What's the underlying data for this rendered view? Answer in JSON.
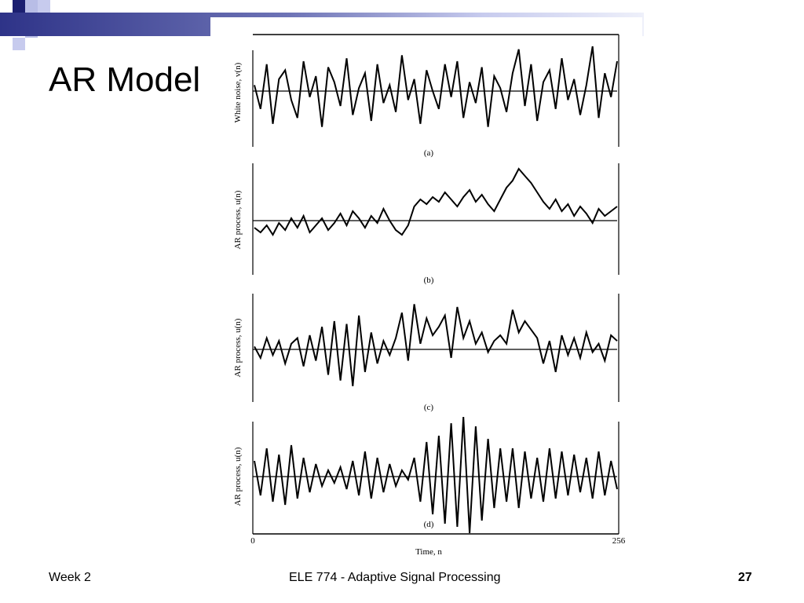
{
  "slide": {
    "title": "AR Model",
    "footer_left": "Week 2",
    "footer_center": "ELE 774 - Adaptive Signal Processing",
    "page_number": "27"
  },
  "colors": {
    "navy": "#1b1f70",
    "lavender": "#b8bde6",
    "accent_gradient_start": "#2e3388"
  },
  "figure": {
    "panels": [
      {
        "ylabel": "White noise, v(n)",
        "caption": "(a)"
      },
      {
        "ylabel": "AR process, u(n)",
        "caption": "(b)"
      },
      {
        "ylabel": "AR process, u(n)",
        "caption": "(c)"
      },
      {
        "ylabel": "AR process, u(n)",
        "caption": "(d)"
      }
    ],
    "x_tick_start": "0",
    "x_tick_end": "256",
    "xlabel": "Time, n"
  },
  "chart_data": [
    {
      "type": "line",
      "ylabel": "White noise, v(n)",
      "caption": "(a)",
      "xlim": [
        0,
        256
      ],
      "series": [
        {
          "values": [
            0.2,
            -0.6,
            0.9,
            -1.1,
            0.4,
            0.7,
            -0.3,
            -0.9,
            1.0,
            -0.2,
            0.5,
            -1.2,
            0.8,
            0.3,
            -0.5,
            1.1,
            -0.8,
            0.1,
            0.6,
            -1.0,
            0.9,
            -0.4,
            0.2,
            -0.7,
            1.2,
            -0.3,
            0.4,
            -1.1,
            0.7,
            0.0,
            -0.6,
            0.9,
            -0.2,
            1.0,
            -0.9,
            0.3,
            -0.4,
            0.8,
            -1.2,
            0.5,
            0.1,
            -0.7,
            0.6,
            1.4,
            -0.5,
            0.9,
            -1.0,
            0.3,
            0.7,
            -0.6,
            1.1,
            -0.3,
            0.4,
            -0.8,
            0.2,
            1.5,
            -0.9,
            0.6,
            -0.2,
            1.0
          ]
        }
      ]
    },
    {
      "type": "line",
      "ylabel": "AR process, u(n)",
      "caption": "(b)",
      "xlim": [
        0,
        256
      ],
      "series": [
        {
          "values": [
            -0.3,
            -0.5,
            -0.2,
            -0.6,
            -0.1,
            -0.4,
            0.1,
            -0.3,
            0.2,
            -0.5,
            -0.2,
            0.1,
            -0.4,
            -0.1,
            0.3,
            -0.2,
            0.4,
            0.1,
            -0.3,
            0.2,
            -0.1,
            0.5,
            0.0,
            -0.4,
            -0.6,
            -0.2,
            0.6,
            0.9,
            0.7,
            1.0,
            0.8,
            1.2,
            0.9,
            0.6,
            1.0,
            1.3,
            0.8,
            1.1,
            0.7,
            0.4,
            0.9,
            1.4,
            1.7,
            2.2,
            1.9,
            1.6,
            1.2,
            0.8,
            0.5,
            0.9,
            0.4,
            0.7,
            0.2,
            0.6,
            0.3,
            -0.1,
            0.5,
            0.2,
            0.4,
            0.6
          ]
        }
      ]
    },
    {
      "type": "line",
      "ylabel": "AR process, u(n)",
      "caption": "(c)",
      "xlim": [
        0,
        256
      ],
      "series": [
        {
          "values": [
            0.1,
            -0.3,
            0.4,
            -0.2,
            0.3,
            -0.5,
            0.2,
            0.4,
            -0.6,
            0.5,
            -0.4,
            0.8,
            -0.9,
            1.0,
            -1.1,
            0.9,
            -1.3,
            1.2,
            -0.8,
            0.6,
            -0.5,
            0.3,
            -0.2,
            0.4,
            1.3,
            -0.4,
            1.6,
            0.2,
            1.1,
            0.5,
            0.8,
            1.2,
            -0.3,
            1.5,
            0.4,
            1.0,
            0.2,
            0.6,
            -0.1,
            0.3,
            0.5,
            0.2,
            1.4,
            0.6,
            1.0,
            0.7,
            0.4,
            -0.5,
            0.3,
            -0.8,
            0.5,
            -0.2,
            0.4,
            -0.3,
            0.6,
            -0.1,
            0.2,
            -0.4,
            0.5,
            0.3
          ]
        }
      ]
    },
    {
      "type": "line",
      "ylabel": "AR process, u(n)",
      "caption": "(d)",
      "xlim": [
        0,
        256
      ],
      "series": [
        {
          "values": [
            0.5,
            -0.6,
            0.9,
            -0.8,
            0.7,
            -0.9,
            1.0,
            -0.7,
            0.6,
            -0.5,
            0.4,
            -0.3,
            0.2,
            -0.2,
            0.3,
            -0.4,
            0.5,
            -0.6,
            0.8,
            -0.7,
            0.6,
            -0.5,
            0.4,
            -0.3,
            0.2,
            -0.1,
            0.6,
            -0.8,
            1.1,
            -1.2,
            1.3,
            -1.5,
            1.7,
            -1.6,
            1.9,
            -1.8,
            1.6,
            -1.4,
            1.2,
            -1.0,
            0.9,
            -0.8,
            0.9,
            -1.0,
            0.8,
            -0.7,
            0.6,
            -0.8,
            0.9,
            -0.7,
            0.8,
            -0.6,
            0.7,
            -0.5,
            0.6,
            -0.7,
            0.8,
            -0.6,
            0.5,
            -0.4
          ]
        }
      ]
    }
  ]
}
